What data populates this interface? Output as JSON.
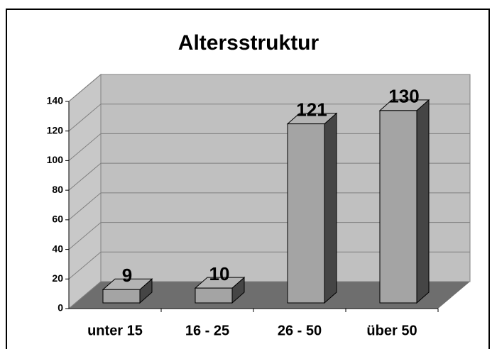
{
  "chart_data": {
    "type": "bar3d",
    "title": "Altersstruktur",
    "categories": [
      "unter 15",
      "16 - 25",
      "26 - 50",
      "über 50"
    ],
    "values": [
      9,
      10,
      121,
      130
    ],
    "ylim": [
      0,
      140
    ],
    "yticks": [
      0,
      20,
      40,
      60,
      80,
      100,
      120,
      140
    ],
    "grid": true
  }
}
